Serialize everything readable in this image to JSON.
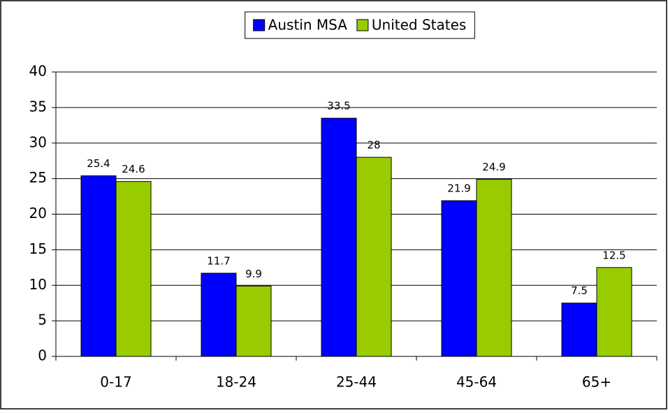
{
  "chart_data": {
    "type": "bar",
    "categories": [
      "0-17",
      "18-24",
      "25-44",
      "45-64",
      "65+"
    ],
    "series": [
      {
        "name": "Austin MSA",
        "color": "#0000ff",
        "values": [
          25.4,
          11.7,
          33.5,
          21.9,
          7.5
        ]
      },
      {
        "name": "United States",
        "color": "#99cc00",
        "values": [
          24.6,
          9.9,
          28,
          24.9,
          12.5
        ]
      }
    ],
    "ylim": [
      0,
      40
    ],
    "yticks": [
      0,
      5,
      10,
      15,
      20,
      25,
      30,
      35,
      40
    ],
    "grid": true,
    "legend": "top"
  }
}
